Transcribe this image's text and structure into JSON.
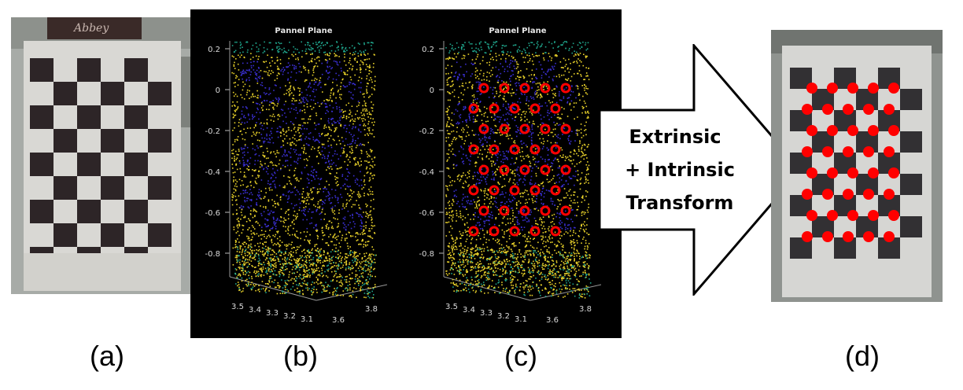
{
  "panels": [
    {
      "id": "a",
      "caption": "(a)"
    },
    {
      "id": "b",
      "caption": "(b)",
      "title": "Pannel Plane"
    },
    {
      "id": "c",
      "caption": "(c)",
      "title": "Pannel Plane"
    },
    {
      "id": "d",
      "caption": "(d)"
    }
  ],
  "plot": {
    "z_ticks": [
      "0.2",
      "0",
      "-0.2",
      "-0.4",
      "-0.6",
      "-0.8"
    ],
    "x_ticks": [
      "3.5",
      "3.4",
      "3.3",
      "3.2",
      "3.1"
    ],
    "y_ticks": [
      "3.6",
      "3.8"
    ]
  },
  "arrow": {
    "lines": [
      "Extrinsic",
      "+ Intrinsic",
      "Transform"
    ]
  },
  "photo_text": "Abbey",
  "colors": {
    "marker": "#ff0000",
    "points_high": "#e8d12a",
    "points_low": "#3a2fd0",
    "points_mid": "#1fa38a",
    "plot_bg": "#000000"
  }
}
